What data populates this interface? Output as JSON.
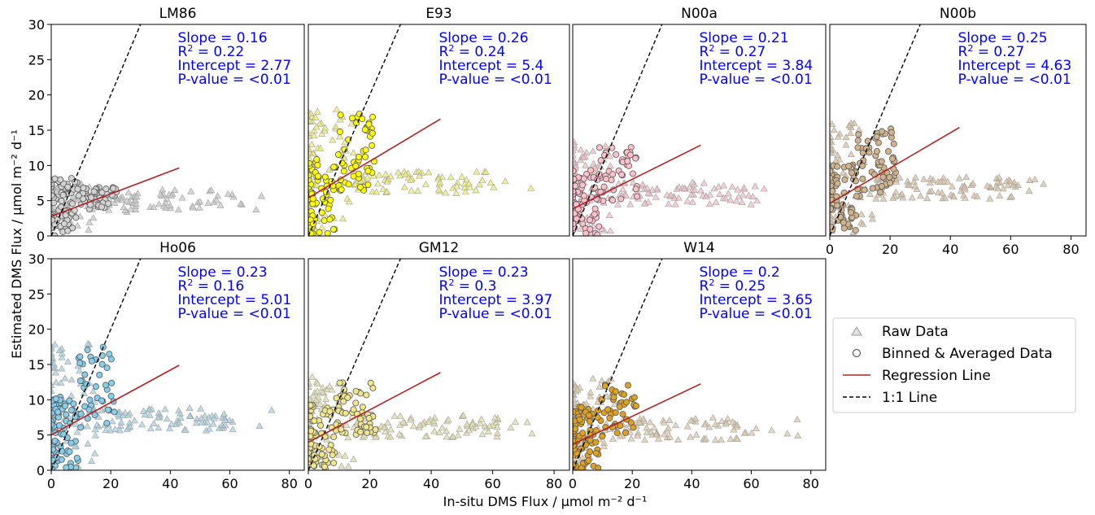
{
  "figure": {
    "ylabel": "Estimated DMS Flux / µmol m⁻² d⁻¹",
    "xlabel": "In-situ DMS Flux / µmol m⁻² d⁻¹"
  },
  "legend": {
    "items": [
      {
        "label": "Raw Data",
        "symbol": "triangle"
      },
      {
        "label": "Binned & Averaged Data",
        "symbol": "circle"
      },
      {
        "label": "Regression Line",
        "symbol": "line",
        "color": "#b22222"
      },
      {
        "label": "1:1 Line",
        "symbol": "dashed-line",
        "color": "#000000"
      }
    ]
  },
  "chart_data": [
    {
      "type": "scatter",
      "title": "LM86",
      "xlim": [
        0,
        85
      ],
      "ylim": [
        0,
        30
      ],
      "xticks": [
        0,
        20,
        40,
        60,
        80
      ],
      "yticks": [
        0,
        5,
        10,
        15,
        20,
        25,
        30
      ],
      "stats": {
        "slope": "Slope = 0.16",
        "r2": "= 0.22",
        "intercept": "Intercept = 2.77",
        "pvalue": "P-value = <0.01"
      },
      "regression": {
        "slope": 0.16,
        "intercept": 2.77,
        "x_range": [
          0,
          43
        ]
      },
      "raw_color": "#c8c8c8",
      "binned_color": "#d3d3d3",
      "raw_band": [
        0,
        7.5
      ]
    },
    {
      "type": "scatter",
      "title": "E93",
      "xlim": [
        0,
        85
      ],
      "ylim": [
        0,
        30
      ],
      "xticks": [
        0,
        20,
        40,
        60,
        80
      ],
      "yticks": [
        0,
        5,
        10,
        15,
        20,
        25,
        30
      ],
      "stats": {
        "slope": "Slope = 0.26",
        "r2": "= 0.24",
        "intercept": "Intercept = 5.4",
        "pvalue": "P-value = <0.01"
      },
      "regression": {
        "slope": 0.26,
        "intercept": 5.4,
        "x_range": [
          0,
          43
        ]
      },
      "raw_color": "#eeee70",
      "binned_color": "#ffff00",
      "raw_band": [
        0,
        18
      ]
    },
    {
      "type": "scatter",
      "title": "N00a",
      "xlim": [
        0,
        85
      ],
      "ylim": [
        0,
        30
      ],
      "xticks": [
        0,
        20,
        40,
        60,
        80
      ],
      "yticks": [
        0,
        5,
        10,
        15,
        20,
        25,
        30
      ],
      "stats": {
        "slope": "Slope = 0.21",
        "r2": "= 0.27",
        "intercept": "Intercept = 3.84",
        "pvalue": "P-value = <0.01"
      },
      "regression": {
        "slope": 0.21,
        "intercept": 3.84,
        "x_range": [
          0,
          43
        ]
      },
      "raw_color": "#f0c0c8",
      "binned_color": "#ffc0cb",
      "raw_band": [
        0,
        13.5
      ]
    },
    {
      "type": "scatter",
      "title": "N00b",
      "xlim": [
        0,
        85
      ],
      "ylim": [
        0,
        30
      ],
      "xticks": [
        0,
        20,
        40,
        60,
        80
      ],
      "yticks": [
        0,
        5,
        10,
        15,
        20,
        25,
        30
      ],
      "stats": {
        "slope": "Slope = 0.25",
        "r2": "= 0.27",
        "intercept": "Intercept = 4.63",
        "pvalue": "P-value = <0.01"
      },
      "regression": {
        "slope": 0.25,
        "intercept": 4.63,
        "x_range": [
          0,
          43
        ]
      },
      "raw_color": "#d8c0a0",
      "binned_color": "#d2b48c",
      "raw_band": [
        0,
        16
      ]
    },
    {
      "type": "scatter",
      "title": "Ho06",
      "xlim": [
        0,
        85
      ],
      "ylim": [
        0,
        30
      ],
      "xticks": [
        0,
        20,
        40,
        60,
        80
      ],
      "yticks": [
        0,
        5,
        10,
        15,
        20,
        25,
        30
      ],
      "stats": {
        "slope": "Slope = 0.23",
        "r2": "= 0.16",
        "intercept": "Intercept = 5.01",
        "pvalue": "P-value = <0.01"
      },
      "regression": {
        "slope": 0.23,
        "intercept": 5.01,
        "x_range": [
          0,
          43
        ]
      },
      "raw_color": "#a8d0e0",
      "binned_color": "#87ceeb",
      "raw_band": [
        0,
        18
      ]
    },
    {
      "type": "scatter",
      "title": "GM12",
      "xlim": [
        0,
        85
      ],
      "ylim": [
        0,
        30
      ],
      "xticks": [
        0,
        20,
        40,
        60,
        80
      ],
      "yticks": [
        0,
        5,
        10,
        15,
        20,
        25,
        30
      ],
      "stats": {
        "slope": "Slope = 0.23",
        "r2": "= 0.3",
        "intercept": "Intercept = 3.97",
        "pvalue": "P-value = <0.01"
      },
      "regression": {
        "slope": 0.23,
        "intercept": 3.97,
        "x_range": [
          0,
          43
        ]
      },
      "raw_color": "#e0dca8",
      "binned_color": "#f0e68c",
      "raw_band": [
        0,
        13.5
      ]
    },
    {
      "type": "scatter",
      "title": "W14",
      "xlim": [
        0,
        85
      ],
      "ylim": [
        0,
        30
      ],
      "xticks": [
        0,
        20,
        40,
        60,
        80
      ],
      "yticks": [
        0,
        5,
        10,
        15,
        20,
        25,
        30
      ],
      "stats": {
        "slope": "Slope = 0.2",
        "r2": "= 0.25",
        "intercept": "Intercept = 3.65",
        "pvalue": "P-value = <0.01"
      },
      "regression": {
        "slope": 0.2,
        "intercept": 3.65,
        "x_range": [
          0,
          43
        ]
      },
      "raw_color": "#dcc8a8",
      "binned_color": "#e0a020",
      "raw_band": [
        0,
        13
      ]
    }
  ]
}
